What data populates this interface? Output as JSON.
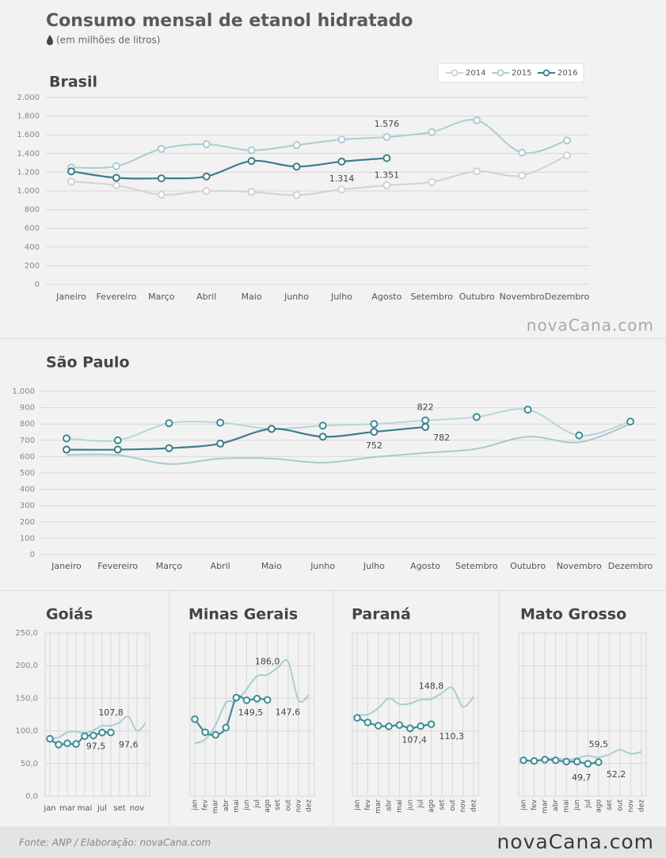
{
  "title": "Consumo mensal de etanol hidratado",
  "subtitle": "(em milhões de litros)",
  "source": "Fonte: ANP  / Elaboração: novaCana.com",
  "logo": "novaCana.com",
  "chart_data": [
    {
      "type": "line",
      "title": "Brasil",
      "categories": [
        "Janeiro",
        "Fevereiro",
        "Março",
        "Abril",
        "Maio",
        "Junho",
        "Julho",
        "Agosto",
        "Setembro",
        "Outubro",
        "Novembro",
        "Dezembro"
      ],
      "series": [
        {
          "name": "2014",
          "color": "#d2d2d2",
          "markers": true,
          "values": [
            1100,
            1060,
            960,
            1000,
            990,
            955,
            1015,
            1060,
            1095,
            1210,
            1165,
            1380
          ]
        },
        {
          "name": "2015",
          "color": "#a9cdd2",
          "markers": true,
          "values": [
            1250,
            1265,
            1450,
            1500,
            1435,
            1490,
            1550,
            1576,
            1630,
            1755,
            1410,
            1540
          ],
          "label_points": [
            7
          ],
          "value_labels": [
            null,
            null,
            null,
            null,
            null,
            null,
            null,
            "1.576",
            null,
            null,
            null,
            null
          ]
        },
        {
          "name": "2016",
          "color": "#3e7d8a",
          "markers": true,
          "values": [
            1210,
            1140,
            1135,
            1155,
            1320,
            1260,
            1314,
            1351,
            null,
            null,
            null,
            null
          ],
          "label_points": [
            6,
            7
          ],
          "value_labels": [
            null,
            null,
            null,
            null,
            null,
            null,
            "1.314",
            "1.351",
            null,
            null,
            null,
            null
          ]
        }
      ],
      "ylim": [
        0,
        2000
      ],
      "yticks": [
        0,
        200,
        400,
        600,
        800,
        {
          "value": 1000,
          "label": "1.000"
        },
        {
          "value": 1200,
          "label": "1.200"
        },
        {
          "value": 1400,
          "label": "1.400"
        },
        {
          "value": 1600,
          "label": "1.600"
        },
        {
          "value": 1800,
          "label": "1.800"
        },
        {
          "value": 2000,
          "label": "2.000"
        }
      ],
      "grid": true,
      "legend": "top-right"
    },
    {
      "type": "line",
      "title": "São Paulo",
      "categories": [
        "Janeiro",
        "Fevereiro",
        "Março",
        "Abril",
        "Maio",
        "Junho",
        "Julho",
        "Agosto",
        "Setembro",
        "Outubro",
        "Novembro",
        "Dezembro"
      ],
      "series": [
        {
          "color": "#a9c9cd",
          "values": [
            610,
            610,
            555,
            588,
            588,
            563,
            597,
            623,
            648,
            722,
            688,
            800
          ]
        },
        {
          "color": "#b7d6da",
          "markers": true,
          "marker_color": "#3e8c96",
          "values": [
            712,
            700,
            805,
            808,
            770,
            790,
            800,
            822,
            843,
            888,
            730,
            815
          ],
          "label_points": [
            7
          ]
        },
        {
          "color": "#3e7d8a",
          "markers": true,
          "values": [
            643,
            643,
            652,
            680,
            770,
            722,
            752,
            782,
            null,
            null,
            null,
            null
          ],
          "label_points": [
            6,
            7
          ]
        }
      ],
      "ylim": [
        0,
        1000
      ],
      "yticks": [
        0,
        100,
        200,
        300,
        400,
        500,
        600,
        700,
        800,
        900,
        {
          "value": 1000,
          "label": "1.000"
        }
      ],
      "grid": true
    },
    {
      "type": "line",
      "title": "Goiás",
      "categories": [
        "jan",
        null,
        "mar",
        null,
        "mai",
        null,
        "jul",
        null,
        "set",
        null,
        "nov",
        null
      ],
      "series": [
        {
          "color": "#a9cdd2",
          "values": [
            88,
            90,
            98,
            99,
            97,
            101,
            108,
            107.8,
            113,
            122,
            100,
            112
          ],
          "label_points": [
            7
          ],
          "value_labels": [
            null,
            null,
            null,
            null,
            null,
            null,
            null,
            "107,8",
            null,
            null,
            null,
            null
          ]
        },
        {
          "color": "#3e8c96",
          "markers": true,
          "values": [
            88,
            79,
            81,
            80,
            92,
            93,
            97.5,
            97.6,
            null,
            null,
            null,
            null
          ],
          "label_points": [
            6,
            7
          ],
          "value_labels": [
            null,
            null,
            null,
            null,
            null,
            null,
            "97,5",
            "97,6",
            null,
            null,
            null,
            null
          ]
        }
      ],
      "ylim": [
        0,
        250
      ],
      "yticks": [
        {
          "value": 0,
          "label": "0,0"
        },
        {
          "value": 50,
          "label": "50,0"
        },
        {
          "value": 100,
          "label": "100,0"
        },
        {
          "value": 150,
          "label": "150,0"
        },
        {
          "value": 200,
          "label": "200,0"
        },
        {
          "value": 250,
          "label": "250,0"
        }
      ],
      "grid": true,
      "xgrid": true
    },
    {
      "type": "line",
      "title": "Minas Gerais",
      "categories": [
        "jan",
        "fev",
        "mar",
        "abr",
        "mai",
        "jun",
        "jul",
        "ago",
        "set",
        "out",
        "nov",
        "dez"
      ],
      "series": [
        {
          "color": "#a9cdd2",
          "values": [
            81,
            87,
            109,
            143,
            146,
            164,
            184,
            186,
            197,
            206,
            147,
            155
          ],
          "label_points": [
            7
          ],
          "value_labels": [
            null,
            null,
            null,
            null,
            null,
            null,
            null,
            "186,0",
            null,
            null,
            null,
            null
          ]
        },
        {
          "color": "#3e8c96",
          "markers": true,
          "values": [
            118,
            98,
            94,
            105,
            151,
            147,
            149.5,
            147.6,
            null,
            null,
            null,
            null
          ],
          "label_points": [
            6,
            7
          ],
          "value_labels": [
            null,
            null,
            null,
            null,
            null,
            null,
            "149,5",
            "147,6",
            null,
            null,
            null,
            null
          ]
        }
      ],
      "ylim": [
        0,
        250
      ],
      "yticks": [
        0,
        50,
        100,
        150,
        200,
        250
      ],
      "ytick_labels": false,
      "grid": true,
      "xgrid": true
    },
    {
      "type": "line",
      "title": "Paraná",
      "categories": [
        "jan",
        "fev",
        "mar",
        "abr",
        "mai",
        "jun",
        "jul",
        "ago",
        "set",
        "out",
        "nov",
        "dez"
      ],
      "series": [
        {
          "color": "#a9cdd2",
          "values": [
            125,
            125,
            135,
            150,
            141,
            142,
            148,
            148.8,
            158,
            166,
            137,
            152
          ],
          "label_points": [
            7
          ],
          "value_labels": [
            null,
            null,
            null,
            null,
            null,
            null,
            null,
            "148,8",
            null,
            null,
            null,
            null
          ]
        },
        {
          "color": "#3e8c96",
          "markers": true,
          "values": [
            120,
            113,
            108,
            107,
            109,
            104,
            107.4,
            110.3,
            null,
            null,
            null,
            null
          ],
          "label_points": [
            6,
            7
          ],
          "value_labels": [
            null,
            null,
            null,
            null,
            null,
            null,
            "107,4",
            "110,3",
            null,
            null,
            null,
            null
          ]
        }
      ],
      "ylim": [
        0,
        250
      ],
      "yticks": [
        0,
        50,
        100,
        150,
        200,
        250
      ],
      "ytick_labels": false,
      "grid": true,
      "xgrid": true
    },
    {
      "type": "line",
      "title": "Mato Grosso",
      "categories": [
        "jan",
        "fev",
        "mar",
        "abr",
        "mai",
        "jun",
        "jul",
        "ago",
        "set",
        "out",
        "nov",
        "dez"
      ],
      "series": [
        {
          "color": "#a9cdd2",
          "values": [
            55,
            54,
            57,
            58,
            56,
            58,
            62,
            59.5,
            64,
            71,
            65,
            68
          ],
          "label_points": [
            7
          ],
          "value_labels": [
            null,
            null,
            null,
            null,
            null,
            null,
            null,
            "59,5",
            null,
            null,
            null,
            null
          ]
        },
        {
          "color": "#3e8c96",
          "markers": true,
          "values": [
            55,
            54,
            56,
            55,
            53,
            53,
            49.7,
            52.2,
            null,
            null,
            null,
            null
          ],
          "label_points": [
            6,
            7
          ],
          "value_labels": [
            null,
            null,
            null,
            null,
            null,
            null,
            "49,7",
            "52,2",
            null,
            null,
            null,
            null
          ]
        }
      ],
      "ylim": [
        0,
        250
      ],
      "yticks": [
        0,
        50,
        100,
        150,
        200,
        250
      ],
      "ytick_labels": false,
      "grid": true,
      "xgrid": true
    }
  ]
}
